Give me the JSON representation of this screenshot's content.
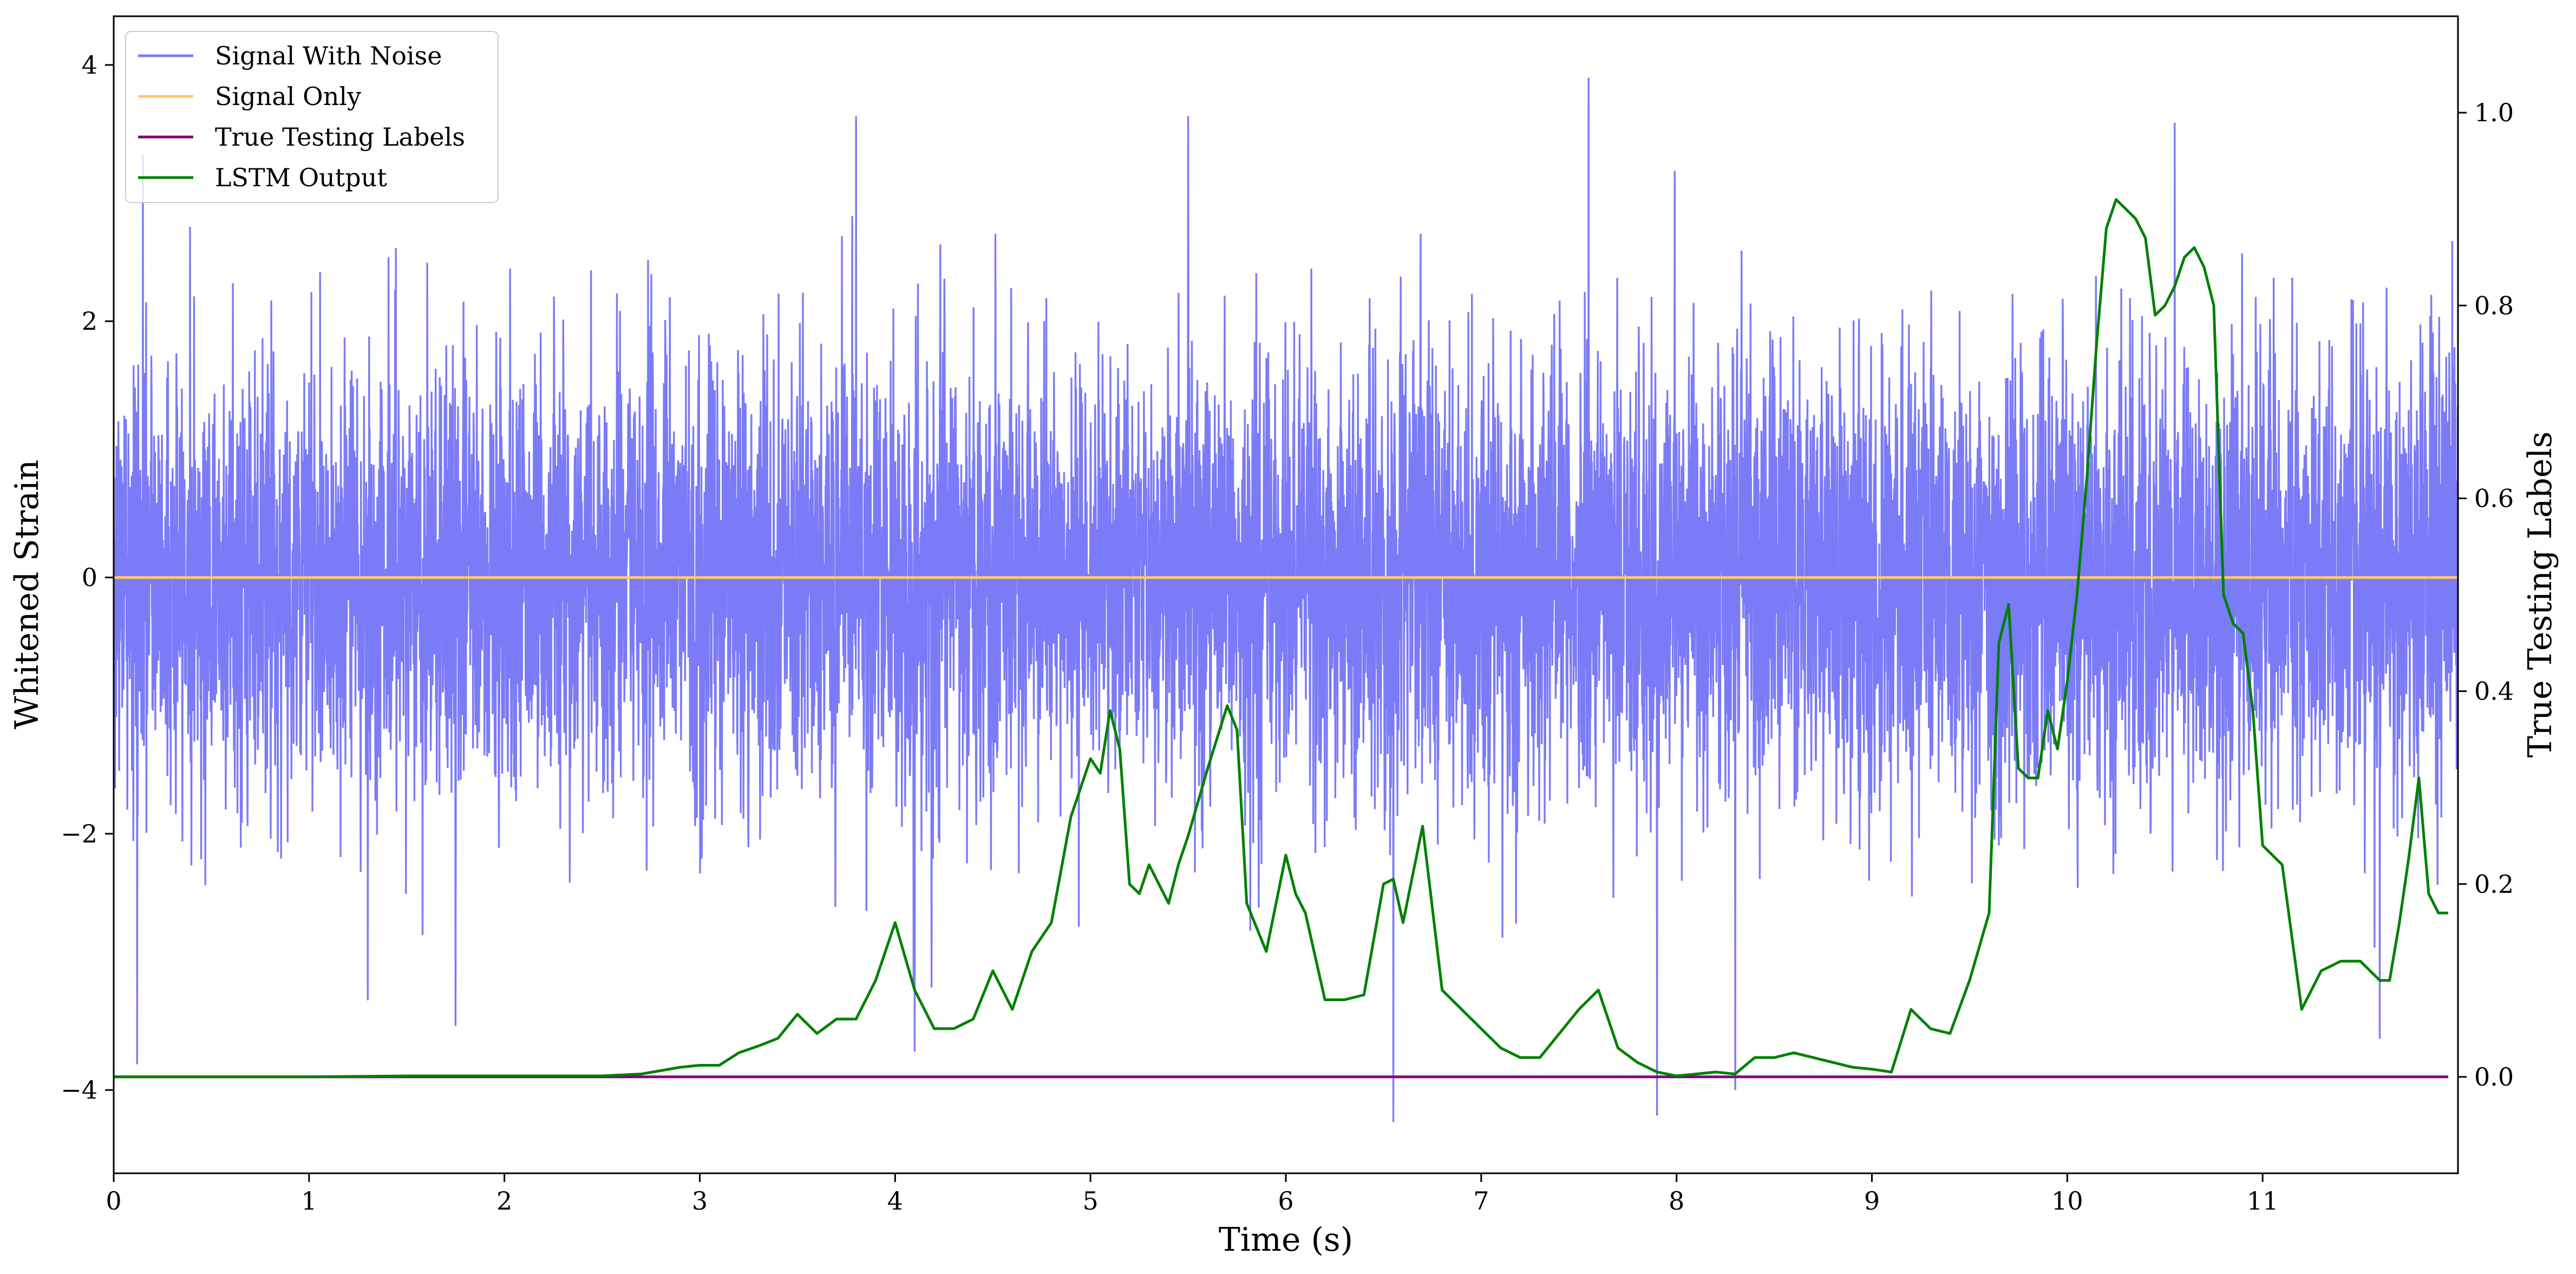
{
  "chart_data": {
    "type": "line",
    "title": "",
    "xlabel": "Time (s)",
    "ylabel_left": "Whitened Strain",
    "ylabel_right": "True Testing Labels",
    "xlim": [
      0,
      12
    ],
    "ylim_left": [
      -4.65,
      4.38
    ],
    "ylim_right": [
      -0.1,
      1.1
    ],
    "x_ticks": [
      0,
      1,
      2,
      3,
      4,
      5,
      6,
      7,
      8,
      9,
      10,
      11
    ],
    "y_ticks_left": [
      -4,
      -2,
      0,
      2,
      4
    ],
    "y_ticks_right": [
      0.0,
      0.2,
      0.4,
      0.6,
      0.8,
      1.0
    ],
    "y_tick_labels_left": [
      "−4",
      "−2",
      "0",
      "2",
      "4"
    ],
    "y_tick_labels_right": [
      "0.0",
      "0.2",
      "0.4",
      "0.6",
      "0.8",
      "1.0"
    ],
    "grid": false,
    "legend_position": "top-left",
    "series": [
      {
        "name": "Signal With Noise",
        "axis": "left",
        "color": "#7b7bf7",
        "kind": "noise",
        "envelope": [
          -2.3,
          2.3
        ],
        "extremes": [
          {
            "x": 0.12,
            "y": -3.8
          },
          {
            "x": 0.15,
            "y": 3.3
          },
          {
            "x": 1.3,
            "y": -3.3
          },
          {
            "x": 1.75,
            "y": -3.5
          },
          {
            "x": 3.8,
            "y": 3.6
          },
          {
            "x": 4.1,
            "y": -3.7
          },
          {
            "x": 5.5,
            "y": 3.6
          },
          {
            "x": 6.55,
            "y": -4.25
          },
          {
            "x": 7.55,
            "y": 3.9
          },
          {
            "x": 7.9,
            "y": -4.2
          },
          {
            "x": 8.3,
            "y": -4.0
          },
          {
            "x": 10.55,
            "y": 3.55
          },
          {
            "x": 11.6,
            "y": -3.6
          }
        ]
      },
      {
        "name": "Signal Only",
        "axis": "left",
        "color": "#ffc966",
        "x": [
          0,
          12
        ],
        "y": [
          0,
          0
        ]
      },
      {
        "name": "True Testing Labels",
        "axis": "right",
        "color": "#800080",
        "x": [
          0,
          11.95
        ],
        "y": [
          0,
          0
        ]
      },
      {
        "name": "LSTM Output",
        "axis": "right",
        "color": "#008000",
        "x": [
          0,
          1.0,
          1.5,
          2.0,
          2.5,
          2.7,
          2.9,
          3.0,
          3.1,
          3.2,
          3.3,
          3.4,
          3.5,
          3.6,
          3.7,
          3.8,
          3.9,
          4.0,
          4.1,
          4.2,
          4.3,
          4.4,
          4.5,
          4.6,
          4.7,
          4.8,
          4.9,
          5.0,
          5.05,
          5.1,
          5.15,
          5.2,
          5.25,
          5.3,
          5.4,
          5.45,
          5.5,
          5.6,
          5.7,
          5.75,
          5.8,
          5.9,
          6.0,
          6.05,
          6.1,
          6.2,
          6.3,
          6.4,
          6.5,
          6.55,
          6.6,
          6.7,
          6.8,
          6.9,
          7.0,
          7.1,
          7.2,
          7.3,
          7.4,
          7.5,
          7.6,
          7.7,
          7.8,
          7.9,
          8.0,
          8.1,
          8.2,
          8.3,
          8.4,
          8.5,
          8.6,
          8.7,
          8.8,
          8.9,
          9.0,
          9.1,
          9.2,
          9.3,
          9.4,
          9.5,
          9.6,
          9.65,
          9.7,
          9.75,
          9.8,
          9.85,
          9.9,
          9.95,
          10.0,
          10.05,
          10.1,
          10.15,
          10.2,
          10.25,
          10.3,
          10.35,
          10.4,
          10.45,
          10.5,
          10.55,
          10.6,
          10.65,
          10.7,
          10.75,
          10.8,
          10.85,
          10.9,
          10.95,
          11.0,
          11.1,
          11.2,
          11.3,
          11.4,
          11.5,
          11.6,
          11.65,
          11.7,
          11.75,
          11.8,
          11.85,
          11.9,
          11.95
        ],
        "y": [
          0.0,
          0.0,
          0.001,
          0.001,
          0.001,
          0.003,
          0.01,
          0.012,
          0.012,
          0.025,
          0.032,
          0.04,
          0.065,
          0.045,
          0.06,
          0.06,
          0.1,
          0.16,
          0.09,
          0.05,
          0.05,
          0.06,
          0.11,
          0.07,
          0.13,
          0.16,
          0.27,
          0.33,
          0.315,
          0.38,
          0.34,
          0.2,
          0.19,
          0.22,
          0.18,
          0.22,
          0.25,
          0.32,
          0.385,
          0.36,
          0.18,
          0.13,
          0.23,
          0.19,
          0.17,
          0.08,
          0.08,
          0.085,
          0.2,
          0.205,
          0.16,
          0.26,
          0.09,
          0.07,
          0.05,
          0.03,
          0.02,
          0.02,
          0.045,
          0.07,
          0.09,
          0.03,
          0.015,
          0.005,
          0.001,
          0.003,
          0.005,
          0.003,
          0.02,
          0.02,
          0.025,
          0.02,
          0.015,
          0.01,
          0.008,
          0.005,
          0.07,
          0.05,
          0.045,
          0.1,
          0.17,
          0.45,
          0.49,
          0.32,
          0.31,
          0.31,
          0.38,
          0.34,
          0.41,
          0.5,
          0.62,
          0.76,
          0.88,
          0.91,
          0.9,
          0.89,
          0.87,
          0.79,
          0.8,
          0.82,
          0.85,
          0.86,
          0.84,
          0.8,
          0.5,
          0.47,
          0.46,
          0.38,
          0.24,
          0.22,
          0.07,
          0.11,
          0.12,
          0.12,
          0.1,
          0.1,
          0.16,
          0.23,
          0.31,
          0.19,
          0.17,
          0.17
        ]
      }
    ]
  }
}
